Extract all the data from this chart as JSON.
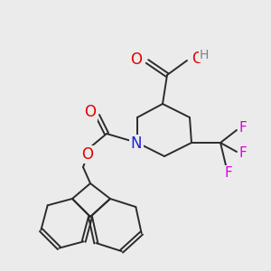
{
  "bg_color": "#ebebeb",
  "bond_color": "#2b2b2b",
  "bond_width": 1.4,
  "atom_colors": {
    "O": "#e00000",
    "N": "#2020e0",
    "F": "#e000e0",
    "H": "#808090",
    "C": "#2b2b2b"
  },
  "font_size_atom": 12,
  "font_size_h": 10,
  "font_size_f": 11
}
